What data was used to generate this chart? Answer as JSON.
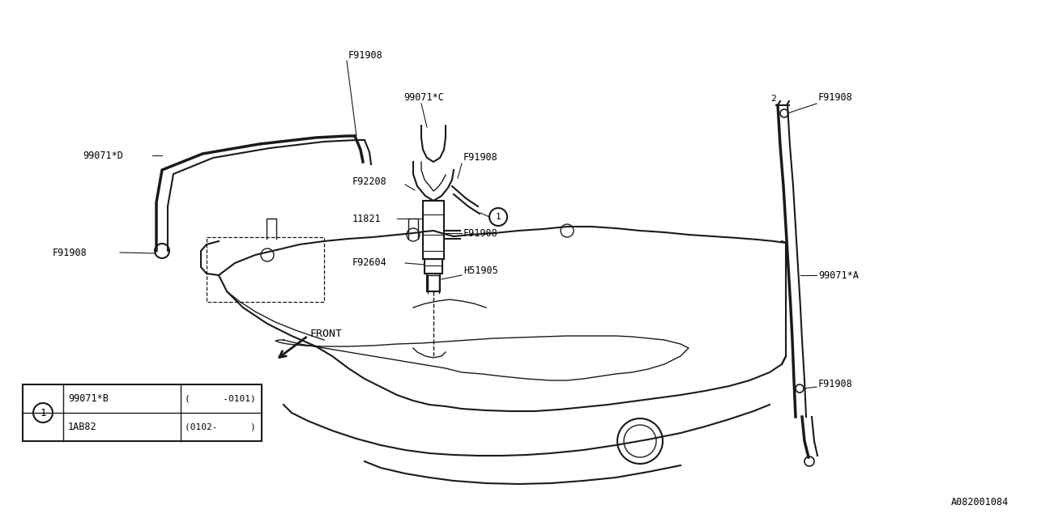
{
  "bg_color": "#ffffff",
  "line_color": "#1a1a1a",
  "font_family": "monospace",
  "diagram_id": "A082001084",
  "lw_thick": 2.5,
  "lw_med": 1.5,
  "lw_thin": 1.0,
  "labels": {
    "F91908_top": "F91908",
    "label_99071C": "99071*C",
    "label_99071D": "99071*D",
    "F91908_left": "F91908",
    "F92208": "F92208",
    "F91908_c1": "F91908",
    "label_11821": "11821",
    "F91908_c2": "F91908",
    "F92604": "F92604",
    "H51905": "H51905",
    "F91908_rt": "F91908",
    "label_99071A": "99071*A",
    "F91908_rb": "F91908",
    "label_front": "FRONT",
    "num2": "2"
  },
  "table": {
    "circle_label": "1",
    "row1_part": "99071*B",
    "row1_range": "(      -0101)",
    "row2_part": "1AB82",
    "row2_range": "(0102-      )"
  }
}
